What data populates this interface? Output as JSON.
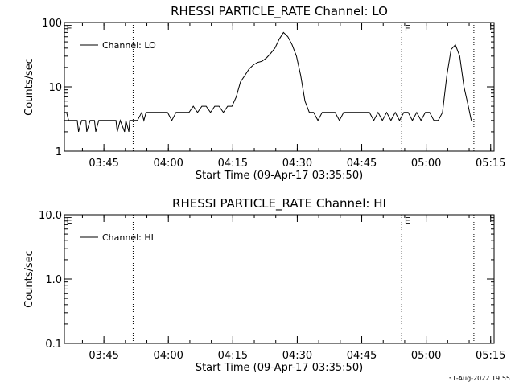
{
  "footer": {
    "timestamp": "31-Aug-2022 19:55"
  },
  "chart_data": [
    {
      "type": "line",
      "title": "RHESSI PARTICLE_RATE Channel: LO",
      "xlabel": "Start Time (09-Apr-17 03:35:50)",
      "ylabel": "Counts/sec",
      "yscale": "log",
      "ylim": [
        1,
        100
      ],
      "ytick_labels": [
        "1",
        "10",
        "100"
      ],
      "ytick_values": [
        1,
        10,
        100
      ],
      "xlim": [
        0,
        100
      ],
      "xtick_labels": [
        "03:45",
        "04:00",
        "04:15",
        "04:30",
        "04:45",
        "05:00",
        "05:15"
      ],
      "xtick_values": [
        9.2,
        24.2,
        39.2,
        54.2,
        69.2,
        84.2,
        99.2
      ],
      "vlines": [
        16,
        78.5,
        95.3
      ],
      "event_markers": [
        {
          "label": "E",
          "x": 0.3
        },
        {
          "label": "E",
          "x": 79
        }
      ],
      "legend": {
        "position": "top-left",
        "entries": [
          "Channel: LO"
        ]
      },
      "series": [
        {
          "name": "Channel: LO",
          "x": [
            0.5,
            1,
            2,
            3,
            3.3,
            4,
            5,
            5.2,
            6,
            7,
            7.3,
            8,
            9,
            10,
            11,
            12,
            12.3,
            13,
            14,
            14.3,
            15,
            15.2,
            16,
            17,
            18,
            18.5,
            19,
            20,
            21,
            22,
            23,
            24,
            25,
            26,
            27,
            28,
            29,
            30,
            31,
            32,
            33,
            34,
            35,
            36,
            37,
            38,
            39,
            40,
            41,
            42,
            43,
            44,
            45,
            46,
            47,
            48,
            49,
            50,
            51,
            52,
            53,
            54,
            55,
            56,
            57,
            58,
            59,
            60,
            61,
            62,
            63,
            64,
            65,
            66,
            67,
            68,
            69,
            70,
            71,
            72,
            73,
            74,
            75,
            76,
            77,
            78,
            79,
            80,
            81,
            82,
            83,
            84,
            85,
            86,
            87,
            88,
            89,
            90,
            91,
            92,
            93,
            94,
            94.7
          ],
          "y": [
            4,
            3,
            3,
            3,
            2,
            3,
            3,
            2,
            3,
            3,
            2,
            3,
            3,
            3,
            3,
            3,
            2,
            3,
            2,
            3,
            2,
            3,
            3,
            3,
            4,
            3,
            4,
            4,
            4,
            4,
            4,
            4,
            3,
            4,
            4,
            4,
            4,
            5,
            4,
            5,
            5,
            4,
            5,
            5,
            4,
            5,
            5,
            7,
            12,
            15,
            19,
            22,
            24,
            25,
            28,
            33,
            40,
            55,
            70,
            60,
            45,
            30,
            15,
            6,
            4,
            4,
            3,
            4,
            4,
            4,
            4,
            3,
            4,
            4,
            4,
            4,
            4,
            4,
            4,
            3,
            4,
            3,
            4,
            3,
            4,
            3,
            4,
            4,
            3,
            4,
            3,
            4,
            4,
            3,
            3,
            4,
            15,
            38,
            45,
            30,
            10,
            5,
            3
          ]
        }
      ]
    },
    {
      "type": "line",
      "title": "RHESSI PARTICLE_RATE Channel: HI",
      "xlabel": "Start Time (09-Apr-17 03:35:50)",
      "ylabel": "Counts/sec",
      "yscale": "log",
      "ylim": [
        0.1,
        10
      ],
      "ytick_labels": [
        "0.1",
        "1.0",
        "10.0"
      ],
      "ytick_values": [
        0.1,
        1,
        10
      ],
      "xlim": [
        0,
        100
      ],
      "xtick_labels": [
        "03:45",
        "04:00",
        "04:15",
        "04:30",
        "04:45",
        "05:00",
        "05:15"
      ],
      "xtick_values": [
        9.2,
        24.2,
        39.2,
        54.2,
        69.2,
        84.2,
        99.2
      ],
      "vlines": [
        16,
        78.5,
        95.3
      ],
      "event_markers": [
        {
          "label": "E",
          "x": 0.3
        },
        {
          "label": "E",
          "x": 79
        }
      ],
      "legend": {
        "position": "top-left",
        "entries": [
          "Channel: HI"
        ]
      },
      "series": [
        {
          "name": "Channel: HI",
          "x": [],
          "y": []
        }
      ]
    }
  ]
}
